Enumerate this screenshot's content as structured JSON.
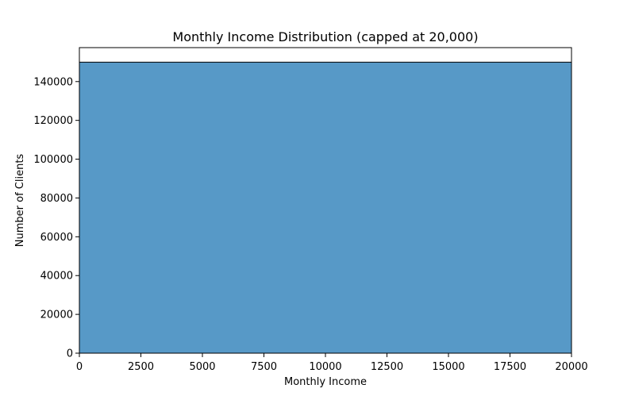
{
  "chart_data": {
    "type": "bar",
    "title": "Monthly Income Distribution (capped at 20,000)",
    "xlabel": "Monthly Income",
    "ylabel": "Number of Clients",
    "xlim": [
      0,
      20000
    ],
    "ylim": [
      0,
      157500
    ],
    "x_ticks": [
      0,
      2500,
      5000,
      7500,
      10000,
      12500,
      15000,
      17500,
      20000
    ],
    "y_ticks": [
      0,
      20000,
      40000,
      60000,
      80000,
      100000,
      120000,
      140000
    ],
    "bins": [
      {
        "x_start": 0,
        "x_end": 20000,
        "count": 150000
      }
    ],
    "bar_color": "#5799c7",
    "grid": false,
    "legend": "none"
  }
}
